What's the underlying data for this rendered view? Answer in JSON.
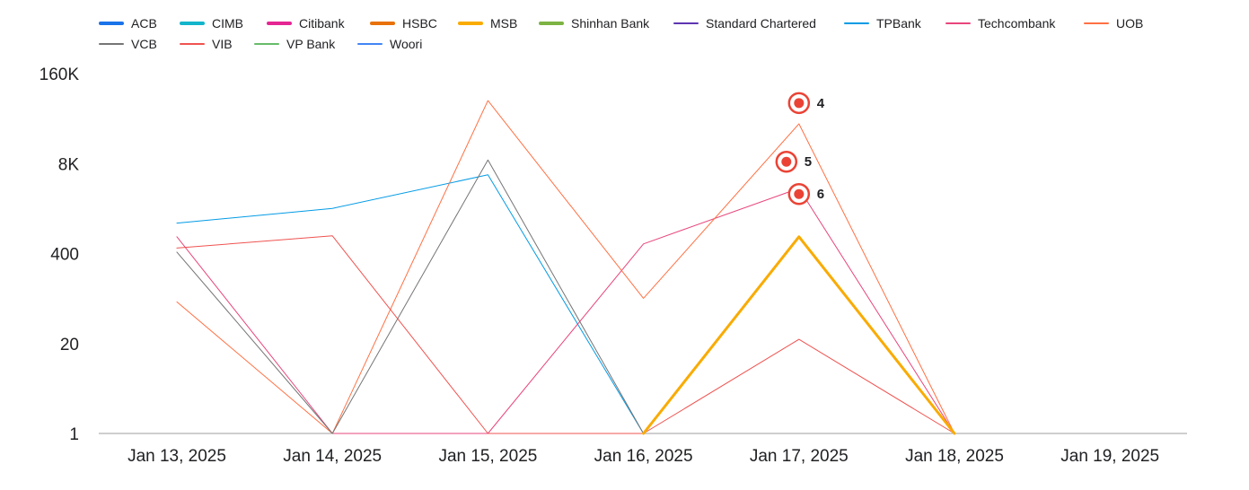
{
  "chart_data": {
    "type": "line",
    "title": "",
    "xlabel": "",
    "ylabel": "",
    "yscale": "log",
    "ylim": [
      1,
      160000
    ],
    "grid": false,
    "legend_position": "top",
    "categories": [
      "Jan 13, 2025",
      "Jan 14, 2025",
      "Jan 15, 2025",
      "Jan 16, 2025",
      "Jan 17, 2025",
      "Jan 18, 2025",
      "Jan 19, 2025"
    ],
    "y_ticks": [
      {
        "value": 1,
        "label": "1"
      },
      {
        "value": 20,
        "label": "20"
      },
      {
        "value": 400,
        "label": "400"
      },
      {
        "value": 8000,
        "label": "8K"
      },
      {
        "value": 160000,
        "label": "160K"
      }
    ],
    "series": [
      {
        "name": "ACB",
        "color": "#1a73e8",
        "width": 3,
        "values": [
          null,
          null,
          null,
          null,
          null,
          null,
          null
        ]
      },
      {
        "name": "CIMB",
        "color": "#12b5cb",
        "width": 3,
        "values": [
          null,
          null,
          null,
          null,
          null,
          null,
          null
        ]
      },
      {
        "name": "Citibank",
        "color": "#e52592",
        "width": 3,
        "values": [
          null,
          null,
          null,
          null,
          null,
          null,
          null
        ]
      },
      {
        "name": "HSBC",
        "color": "#e8710a",
        "width": 3,
        "values": [
          null,
          null,
          null,
          null,
          null,
          null,
          null
        ]
      },
      {
        "name": "MSB",
        "color": "#f9ab00",
        "width": 3,
        "values": [
          null,
          null,
          null,
          0,
          700,
          0,
          null
        ]
      },
      {
        "name": "Shinhan Bank",
        "color": "#7cb342",
        "width": 3,
        "values": [
          null,
          null,
          null,
          null,
          null,
          null,
          null
        ]
      },
      {
        "name": "Standard Chartered",
        "color": "#5e35b1",
        "width": 1,
        "values": [
          null,
          null,
          null,
          null,
          null,
          null,
          null
        ]
      },
      {
        "name": "TPBank",
        "color": "#039be5",
        "width": 1,
        "values": [
          1100,
          1800,
          5500,
          0,
          null,
          null,
          null
        ]
      },
      {
        "name": "Techcombank",
        "color": "#e8457c",
        "width": 1,
        "values": [
          700,
          0,
          0,
          550,
          3500,
          0,
          null
        ]
      },
      {
        "name": "UOB",
        "color": "#ff7043",
        "width": 1,
        "values": [
          80,
          0,
          65000,
          90,
          30000,
          0,
          null
        ]
      },
      {
        "name": "VCB",
        "color": "#757575",
        "width": 1,
        "values": [
          420,
          0,
          9000,
          0,
          null,
          null,
          null
        ]
      },
      {
        "name": "VIB",
        "color": "#ef5350",
        "width": 1,
        "values": [
          480,
          720,
          0,
          0,
          23,
          0,
          null
        ]
      },
      {
        "name": "VP Bank",
        "color": "#66bb6a",
        "width": 1,
        "values": [
          null,
          null,
          null,
          null,
          null,
          null,
          null
        ]
      },
      {
        "name": "Woori",
        "color": "#4285f4",
        "width": 1,
        "values": [
          null,
          null,
          null,
          null,
          null,
          null,
          null
        ]
      }
    ],
    "annotations": [
      {
        "label": "4",
        "x": "Jan 17, 2025",
        "y": 60000,
        "dx": 0
      },
      {
        "label": "5",
        "x": "Jan 17, 2025",
        "y": 8500,
        "dx": -14
      },
      {
        "label": "6",
        "x": "Jan 17, 2025",
        "y": 2900,
        "dx": 0
      }
    ]
  }
}
